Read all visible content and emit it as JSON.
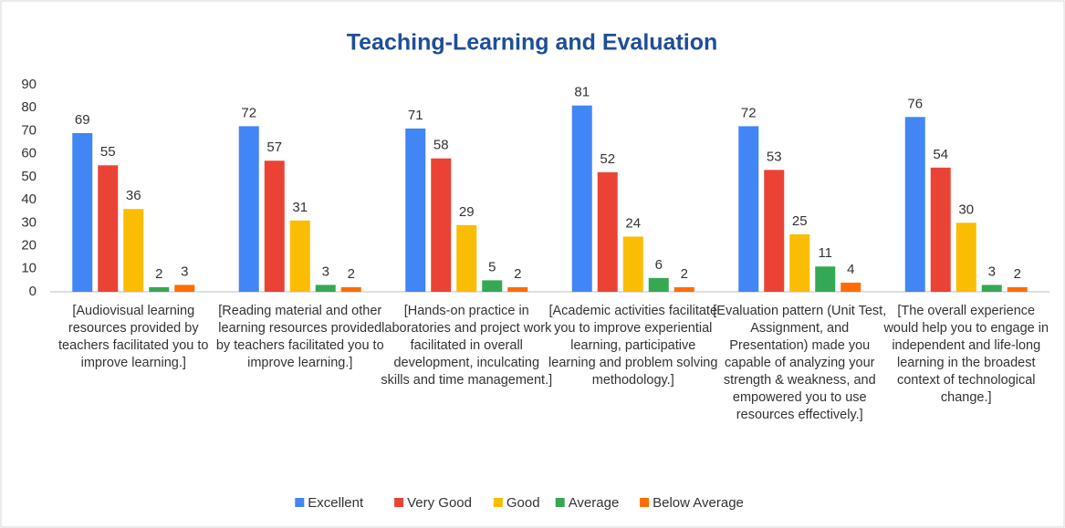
{
  "chart_data": {
    "type": "bar",
    "title": "Teaching-Learning and Evaluation",
    "categories": [
      "[Audiovisual learning resources provided by teachers facilitated you to improve learning.]",
      "[Reading material and other learning resources provided by teachers facilitated you to improve learning.]",
      "[Hands-on practice in laboratories and project work facilitated in overall development, inculcating skills and time management.]",
      "[Academic activities facilitate you to improve experiential learning, participative learning and problem solving methodology.]",
      "[Evaluation pattern (Unit Test, Assignment, and Presentation) made you capable of analyzing your strength & weakness, and empowered you to use resources effectively.]",
      "[The overall experience would help you to engage in independent and life-long learning in the broadest context of technological change.]"
    ],
    "series": [
      {
        "name": "Excellent",
        "color": "#4285f4",
        "values": [
          69,
          72,
          71,
          81,
          72,
          76
        ]
      },
      {
        "name": "Very Good",
        "color": "#ea4335",
        "values": [
          55,
          57,
          58,
          52,
          53,
          54
        ]
      },
      {
        "name": "Good",
        "color": "#fbbc04",
        "values": [
          36,
          31,
          29,
          24,
          25,
          30
        ]
      },
      {
        "name": "Average",
        "color": "#34a853",
        "values": [
          2,
          3,
          5,
          6,
          11,
          3
        ]
      },
      {
        "name": "Below Average",
        "color": "#ff6d01",
        "values": [
          3,
          2,
          2,
          2,
          4,
          2
        ]
      }
    ],
    "ylim": [
      0,
      90
    ],
    "yticks": [
      0,
      10,
      20,
      30,
      40,
      50,
      60,
      70,
      80,
      90
    ],
    "grid": false,
    "legend": "bottom"
  }
}
